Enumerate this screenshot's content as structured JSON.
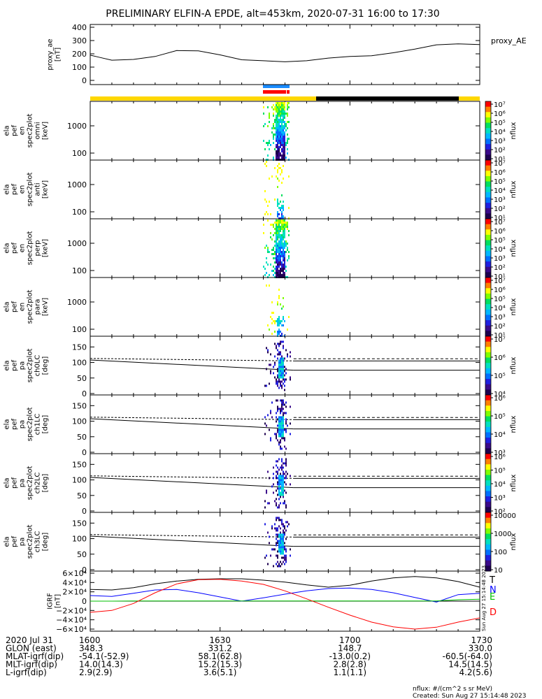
{
  "title": "PRELIMINARY ELFIN-A EPDE, alt=453km, 2020-07-31 16:00 to 17:30",
  "colors": {
    "black": "#000000",
    "blue": "#0000ff",
    "red": "#ff0000",
    "green": "#00c000",
    "yellow": "#ffd700",
    "bar_blue": "#1a8cff"
  },
  "chart_data": [
    {
      "id": "proxy_ae",
      "type": "line",
      "ylabel": [
        "proxy_ae",
        "[nT]"
      ],
      "legend": "proxy_AE",
      "ylim": [
        0,
        400
      ],
      "yticks": [
        0,
        100,
        200,
        300,
        400
      ],
      "time_minutes": [
        0,
        2,
        5,
        10,
        15,
        20,
        25,
        30,
        35,
        40,
        45,
        50,
        55,
        60,
        65,
        70,
        75,
        80,
        85,
        90
      ],
      "values": [
        190,
        175,
        152,
        158,
        180,
        225,
        222,
        192,
        155,
        148,
        140,
        148,
        168,
        180,
        185,
        208,
        235,
        268,
        275,
        270
      ]
    },
    {
      "id": "spec_omni",
      "type": "heatmap",
      "ylabel": [
        "ela",
        "pef",
        "en",
        "spec2plot",
        "omni",
        "[keV]"
      ],
      "yscale": "log",
      "yticks": [
        "100",
        "1000"
      ],
      "colorbar_label": "nflux",
      "colorbar_ticks": [
        "10¹",
        "10²",
        "10³",
        "10⁴",
        "10⁵",
        "10⁶",
        "10⁷"
      ],
      "active_interval_minutes": [
        40,
        45
      ]
    },
    {
      "id": "spec_anti",
      "type": "heatmap",
      "ylabel": [
        "ela",
        "pef",
        "en",
        "spec2plot",
        "anti",
        "[keV]"
      ],
      "yscale": "log",
      "yticks": [
        "100",
        "1000"
      ],
      "colorbar_label": "nflux",
      "colorbar_ticks": [
        "10¹",
        "10²",
        "10³",
        "10⁴",
        "10⁵",
        "10⁶",
        "10⁷"
      ],
      "active_interval_minutes": [
        40,
        45
      ]
    },
    {
      "id": "spec_perp",
      "type": "heatmap",
      "ylabel": [
        "ela",
        "pef",
        "en",
        "spec2plot",
        "perp",
        "[keV]"
      ],
      "yscale": "log",
      "yticks": [
        "100",
        "1000"
      ],
      "colorbar_label": "nflux",
      "colorbar_ticks": [
        "10¹",
        "10²",
        "10³",
        "10⁴",
        "10⁵",
        "10⁶",
        "10⁷"
      ],
      "active_interval_minutes": [
        40,
        45
      ]
    },
    {
      "id": "spec_para",
      "type": "heatmap",
      "ylabel": [
        "ela",
        "pef",
        "en",
        "spec2plot",
        "para",
        "[keV]"
      ],
      "yscale": "log",
      "yticks": [
        "100",
        "1000"
      ],
      "colorbar_label": "nflux",
      "colorbar_ticks": [
        "10¹",
        "10²",
        "10³",
        "10⁴",
        "10⁵",
        "10⁶",
        "10⁷"
      ],
      "active_interval_minutes": [
        40,
        45
      ]
    },
    {
      "id": "pa_ch0",
      "type": "heatmap",
      "ylabel": [
        "ela",
        "pef",
        "pa",
        "spec2plot",
        "ch0LC",
        "[deg]"
      ],
      "ylim": [
        0,
        180
      ],
      "yticks": [
        0,
        50,
        100,
        150
      ],
      "colorbar_label": "nflux",
      "colorbar_ticks": [
        "10⁴",
        "10⁵",
        "10⁶",
        "10⁷"
      ]
    },
    {
      "id": "pa_ch1",
      "type": "heatmap",
      "ylabel": [
        "ela",
        "pef",
        "pa",
        "spec2plot",
        "ch1LC",
        "[deg]"
      ],
      "ylim": [
        0,
        180
      ],
      "yticks": [
        0,
        50,
        100,
        150
      ],
      "colorbar_label": "nflux",
      "colorbar_ticks": [
        "10³",
        "10⁴",
        "10⁵",
        "10⁶"
      ]
    },
    {
      "id": "pa_ch2",
      "type": "heatmap",
      "ylabel": [
        "ela",
        "pef",
        "pa",
        "spec2plot",
        "ch2LC",
        "[deg]"
      ],
      "ylim": [
        0,
        180
      ],
      "yticks": [
        0,
        50,
        100,
        150
      ],
      "colorbar_label": "nflux",
      "colorbar_ticks": [
        "10²",
        "10³",
        "10⁴",
        "10⁵",
        "10⁶"
      ]
    },
    {
      "id": "pa_ch3",
      "type": "heatmap",
      "ylabel": [
        "ela",
        "pef",
        "pa",
        "spec2plot",
        "ch3LC",
        "[deg]"
      ],
      "ylim": [
        0,
        180
      ],
      "yticks": [
        0,
        50,
        100,
        150
      ],
      "colorbar_label": "nflux",
      "colorbar_ticks": [
        "10",
        "100",
        "1000",
        "10000"
      ]
    },
    {
      "id": "igrf",
      "type": "line",
      "ylabel": [
        "IGRF",
        "[nT]"
      ],
      "ylim": [
        -60000,
        60000
      ],
      "yticks": [
        "−6×10⁴",
        "−4×10⁴",
        "−2×10⁴",
        "0",
        "2×10⁴",
        "4×10⁴",
        "6×10⁴"
      ],
      "time_minutes": [
        0,
        5,
        10,
        15,
        20,
        25,
        30,
        35,
        40,
        45,
        50,
        55,
        60,
        65,
        70,
        75,
        80,
        85,
        90
      ],
      "series": [
        {
          "name": "T",
          "color": "#000000",
          "values": [
            25000,
            24000,
            29000,
            37000,
            43000,
            47000,
            48000,
            48000,
            45000,
            41000,
            35000,
            30000,
            34000,
            43000,
            50000,
            53000,
            50000,
            42000,
            30000
          ]
        },
        {
          "name": "N",
          "color": "#0000ff",
          "values": [
            12000,
            10000,
            17000,
            24000,
            25000,
            18000,
            9000,
            0,
            7000,
            15000,
            22000,
            27000,
            28000,
            25000,
            18000,
            8000,
            -2000,
            14000,
            17000
          ]
        },
        {
          "name": "E",
          "color": "#00c000",
          "values": [
            0,
            0,
            500,
            500,
            500,
            500,
            500,
            500,
            500,
            500,
            500,
            500,
            500,
            500,
            500,
            500,
            500,
            3000,
            4000
          ]
        },
        {
          "name": "D",
          "color": "#ff0000",
          "values": [
            -24000,
            -20000,
            -5000,
            18000,
            37000,
            46000,
            47000,
            43000,
            36000,
            22000,
            5000,
            -13000,
            -30000,
            -45000,
            -55000,
            -60000,
            -56000,
            -45000,
            -36000
          ]
        }
      ]
    }
  ],
  "time_axis": {
    "labels": [
      "1600",
      "1630",
      "1700",
      "1730"
    ],
    "rows": [
      {
        "label": "2020 Jul 31",
        "values": [
          "1600",
          "1630",
          "1700",
          "1730"
        ]
      },
      {
        "label": "GLON (east)",
        "values": [
          "348.3",
          "331.2",
          "148.7",
          "330.0"
        ]
      },
      {
        "label": "MLAT-igrf(dip)",
        "values": [
          "-54.1(-52.9)",
          "58.1(62.8)",
          "-13.0(0.2)",
          "-60.5(-64.0)"
        ]
      },
      {
        "label": "MLT-igrf(dip)",
        "values": [
          "14.0(14.3)",
          "15.2(15.3)",
          "2.8(2.8)",
          "14.5(14.5)"
        ]
      },
      {
        "label": "L-igrf(dip)",
        "values": [
          "2.9(2.9)",
          "3.6(5.1)",
          "1.1(1.1)",
          "4.2(5.6)"
        ]
      }
    ]
  },
  "footer": {
    "units": "nflux: #/(cm^2 s sr MeV)",
    "created": "Created: Sun Aug 27 15:14:48 2023",
    "side_stamp": "Sun Aug 27 15:14:48 2023"
  }
}
